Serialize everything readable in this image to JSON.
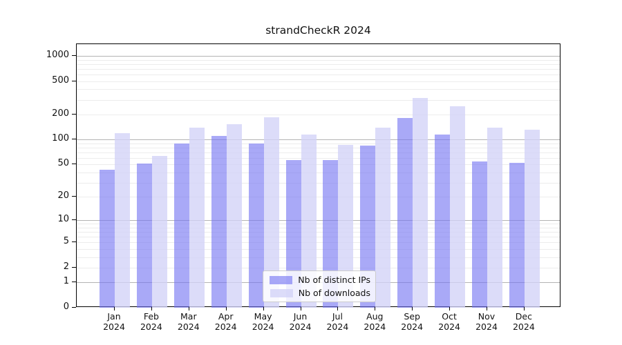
{
  "chart_data": {
    "type": "bar",
    "title": "strandCheckR 2024",
    "scale": "log1p",
    "grid": true,
    "legend_position": "lower center",
    "months": [
      "Jan",
      "Feb",
      "Mar",
      "Apr",
      "May",
      "Jun",
      "Jul",
      "Aug",
      "Sep",
      "Oct",
      "Nov",
      "Dec"
    ],
    "year": "2024",
    "y_ticks": [
      0,
      1,
      2,
      5,
      10,
      20,
      50,
      100,
      200,
      500,
      1000
    ],
    "ylim": [
      0,
      1400
    ],
    "series": [
      {
        "name": "Nb of distinct IPs",
        "color": "#7474f2",
        "values": [
          43,
          51,
          89,
          110,
          89,
          56,
          57,
          85,
          180,
          115,
          54,
          52
        ]
      },
      {
        "name": "Nb of downloads",
        "color": "#d2d2f7",
        "values": [
          120,
          64,
          140,
          154,
          185,
          116,
          87,
          140,
          315,
          253,
          140,
          132
        ]
      }
    ],
    "colors": {
      "major_gridline": "#b3b3b3",
      "minor_gridline": "#ececec",
      "axis": "#000000"
    }
  }
}
